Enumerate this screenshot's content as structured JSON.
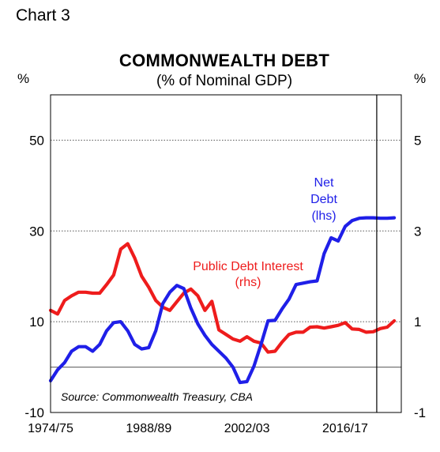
{
  "chart_label": "Chart 3",
  "chart_data": {
    "type": "line",
    "title": "COMMONWEALTH DEBT",
    "subtitle": "(% of Nominal GDP)",
    "ylabel_left": "%",
    "ylabel_right": "%",
    "ylim_left": [
      -10,
      60
    ],
    "ylim_right": [
      -1,
      6
    ],
    "yticks_left": [
      "50",
      "30",
      "10",
      "-10"
    ],
    "yticks_right": [
      "5",
      "3",
      "1",
      "-1"
    ],
    "xlim": [
      1974,
      2024
    ],
    "xticks": [
      "1974/75",
      "1988/89",
      "2002/03",
      "2016/17"
    ],
    "forecast_start": 2020.5,
    "source": "Source: Commonwealth Treasury, CBA",
    "annotations": {
      "net_debt": [
        "Net",
        "Debt",
        "(lhs)"
      ],
      "interest": [
        "Public Debt Interest",
        "(rhs)"
      ]
    },
    "series": [
      {
        "key": "net_debt",
        "axis": "left",
        "color": "#1f1fe8",
        "x": [
          1974,
          1975,
          1976,
          1977,
          1978,
          1979,
          1980,
          1981,
          1982,
          1983,
          1984,
          1985,
          1986,
          1987,
          1988,
          1989,
          1990,
          1991,
          1992,
          1993,
          1994,
          1995,
          1996,
          1997,
          1998,
          1999,
          2000,
          2001,
          2002,
          2003,
          2004,
          2005,
          2006,
          2007,
          2008,
          2009,
          2010,
          2011,
          2012,
          2013,
          2014,
          2015,
          2016,
          2017,
          2018,
          2019,
          2020,
          2021,
          2022,
          2023
        ],
        "values": [
          -3,
          -0.6,
          1,
          3.5,
          4.5,
          4.5,
          3.5,
          5,
          8,
          9.8,
          10,
          8,
          5,
          4,
          4.3,
          8,
          14,
          16.5,
          18,
          17.3,
          13,
          9.5,
          7,
          5,
          3.5,
          2,
          0,
          -3.4,
          -3.2,
          0.2,
          5,
          10.2,
          10.3,
          12.8,
          15,
          18.2,
          18.5,
          18.8,
          19,
          25,
          28.5,
          27.8,
          31,
          32.3,
          32.8,
          32.9,
          32.9,
          32.8,
          32.8,
          32.9
        ]
      },
      {
        "key": "public_debt_interest",
        "axis": "right",
        "color": "#ee1c1c",
        "x": [
          1974,
          1975,
          1976,
          1977,
          1978,
          1979,
          1980,
          1981,
          1982,
          1983,
          1984,
          1985,
          1986,
          1987,
          1988,
          1989,
          1990,
          1991,
          1992,
          1993,
          1994,
          1995,
          1996,
          1997,
          1998,
          1999,
          2000,
          2001,
          2002,
          2003,
          2004,
          2005,
          2006,
          2007,
          2008,
          2009,
          2010,
          2011,
          2012,
          2013,
          2014,
          2015,
          2016,
          2017,
          2018,
          2019,
          2020,
          2021,
          2022,
          2023
        ],
        "values": [
          1.25,
          1.17,
          1.47,
          1.57,
          1.65,
          1.65,
          1.63,
          1.63,
          1.82,
          2.03,
          2.6,
          2.72,
          2.4,
          2,
          1.76,
          1.47,
          1.32,
          1.25,
          1.44,
          1.63,
          1.72,
          1.57,
          1.25,
          1.45,
          0.82,
          0.72,
          0.62,
          0.57,
          0.67,
          0.57,
          0.53,
          0.33,
          0.35,
          0.55,
          0.72,
          0.77,
          0.77,
          0.88,
          0.89,
          0.86,
          0.89,
          0.92,
          0.98,
          0.84,
          0.83,
          0.77,
          0.78,
          0.85,
          0.88,
          1.02
        ]
      }
    ]
  }
}
